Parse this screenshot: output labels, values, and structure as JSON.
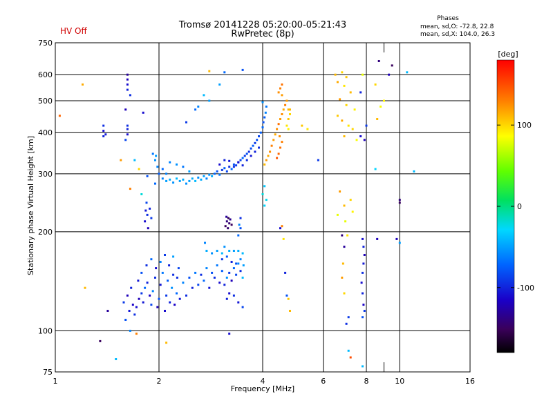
{
  "header": {
    "hv_status": "HV Off",
    "title_line1": "Tromsø 20141228 05:20:00-05:21:43",
    "title_line2": "RwPretec (8p)",
    "phases_title": "Phases",
    "phases_o": "mean, sd,O: -72.8, 22.8",
    "phases_x": "mean, sd,X: 104.0, 26.3",
    "hv_color": "#d00000"
  },
  "chart_data": {
    "type": "scatter",
    "title": "Tromsø 20141228 05:20:00-05:21:43",
    "subtitle": "RwPretec (8p)",
    "xlabel": "Frequency [MHz]",
    "ylabel": "Stationary phase Virtual Height [km]",
    "xscale": "log",
    "yscale": "log",
    "xlim": [
      1,
      16
    ],
    "ylim": [
      75,
      750
    ],
    "x_ticks": [
      1,
      2,
      4,
      6,
      8,
      10,
      16
    ],
    "x_minor_ticks": [
      9
    ],
    "y_ticks": [
      75,
      100,
      200,
      300,
      400,
      500,
      600,
      750
    ],
    "grid": true,
    "colorbar": {
      "label": "[deg]",
      "range": [
        -180,
        180
      ],
      "ticks": [
        100,
        0,
        -100
      ]
    },
    "points": [
      [
        1.7,
        112,
        -95
      ],
      [
        1.72,
        118,
        -110
      ],
      [
        1.75,
        125,
        -120
      ],
      [
        1.78,
        130,
        -90
      ],
      [
        1.8,
        122,
        -105
      ],
      [
        1.82,
        135,
        -70
      ],
      [
        1.85,
        140,
        -100
      ],
      [
        1.88,
        128,
        -115
      ],
      [
        1.9,
        120,
        -85
      ],
      [
        1.92,
        132,
        -60
      ],
      [
        1.95,
        145,
        -95
      ],
      [
        1.98,
        118,
        -120
      ],
      [
        2.0,
        125,
        -80
      ],
      [
        2.02,
        138,
        -105
      ],
      [
        2.05,
        150,
        -65
      ],
      [
        2.08,
        115,
        -110
      ],
      [
        2.1,
        128,
        -90
      ],
      [
        2.12,
        142,
        -75
      ],
      [
        2.15,
        122,
        -100
      ],
      [
        2.18,
        135,
        -55
      ],
      [
        2.2,
        148,
        -95
      ],
      [
        2.22,
        120,
        -115
      ],
      [
        2.25,
        130,
        -70
      ],
      [
        2.28,
        155,
        -85
      ],
      [
        2.3,
        125,
        -105
      ],
      [
        2.35,
        140,
        -60
      ],
      [
        2.4,
        128,
        -95
      ],
      [
        2.45,
        145,
        -80
      ],
      [
        2.5,
        135,
        -100
      ],
      [
        2.55,
        150,
        -65
      ],
      [
        1.74,
        142,
        -105
      ],
      [
        1.78,
        150,
        -80
      ],
      [
        1.84,
        158,
        -95
      ],
      [
        1.9,
        165,
        -70
      ],
      [
        1.96,
        155,
        -110
      ],
      [
        2.02,
        162,
        -60
      ],
      [
        2.08,
        170,
        -90
      ],
      [
        2.14,
        158,
        -100
      ],
      [
        2.2,
        168,
        -50
      ],
      [
        2.26,
        145,
        -95
      ],
      [
        1.62,
        128,
        -120
      ],
      [
        1.66,
        135,
        -100
      ],
      [
        1.68,
        120,
        -115
      ],
      [
        1.58,
        122,
        -90
      ],
      [
        1.64,
        115,
        -105
      ],
      [
        2.6,
        138,
        -85
      ],
      [
        2.65,
        148,
        -95
      ],
      [
        2.7,
        142,
        -70
      ],
      [
        2.75,
        155,
        -60
      ],
      [
        2.8,
        135,
        -105
      ],
      [
        2.85,
        150,
        -80
      ],
      [
        2.9,
        145,
        -95
      ],
      [
        2.95,
        158,
        -65
      ],
      [
        3.0,
        140,
        -110
      ],
      [
        3.05,
        152,
        -75
      ],
      [
        3.1,
        138,
        -100
      ],
      [
        3.15,
        145,
        -55
      ],
      [
        3.2,
        150,
        -90
      ],
      [
        3.25,
        142,
        -120
      ],
      [
        3.3,
        155,
        -70
      ],
      [
        3.35,
        148,
        -85
      ],
      [
        3.4,
        160,
        -60
      ],
      [
        3.45,
        152,
        -95
      ],
      [
        3.5,
        145,
        -40
      ],
      [
        3.52,
        158,
        -50
      ],
      [
        2.75,
        175,
        -45
      ],
      [
        2.85,
        172,
        -55
      ],
      [
        2.95,
        175,
        -50
      ],
      [
        3.05,
        172,
        -40
      ],
      [
        3.2,
        175,
        -45
      ],
      [
        3.3,
        175,
        -50
      ],
      [
        3.4,
        175,
        -45
      ],
      [
        3.5,
        172,
        -40
      ],
      [
        2.72,
        185,
        -60
      ],
      [
        3.1,
        180,
        -55
      ],
      [
        3.15,
        125,
        -100
      ],
      [
        3.2,
        130,
        -110
      ],
      [
        3.3,
        128,
        -95
      ],
      [
        3.4,
        122,
        -105
      ],
      [
        3.5,
        118,
        -85
      ],
      [
        3.05,
        165,
        -90
      ],
      [
        3.15,
        168,
        -75
      ],
      [
        3.25,
        162,
        -100
      ],
      [
        3.35,
        160,
        -80
      ],
      [
        3.45,
        165,
        -60
      ],
      [
        3.4,
        195,
        -70
      ],
      [
        3.45,
        205,
        -80
      ],
      [
        3.45,
        220,
        -95
      ],
      [
        3.42,
        210,
        -60
      ],
      [
        3.12,
        208,
        -150
      ],
      [
        3.15,
        215,
        -140
      ],
      [
        3.18,
        220,
        -155
      ],
      [
        3.2,
        212,
        -145
      ],
      [
        3.22,
        218,
        -135
      ],
      [
        3.25,
        210,
        -150
      ],
      [
        3.14,
        222,
        -130
      ],
      [
        3.17,
        205,
        -145
      ],
      [
        1.82,
        215,
        -110
      ],
      [
        1.85,
        225,
        -95
      ],
      [
        1.88,
        235,
        -100
      ],
      [
        1.84,
        245,
        -85
      ],
      [
        1.86,
        205,
        -120
      ],
      [
        1.9,
        220,
        -90
      ],
      [
        1.83,
        232,
        -105
      ],
      [
        1.62,
        395,
        -110
      ],
      [
        1.62,
        410,
        -100
      ],
      [
        1.62,
        420,
        -95
      ],
      [
        1.6,
        380,
        -85
      ],
      [
        1.38,
        390,
        -100
      ],
      [
        1.38,
        405,
        -110
      ],
      [
        1.38,
        420,
        -95
      ],
      [
        1.4,
        395,
        -105
      ],
      [
        1.62,
        580,
        -120
      ],
      [
        1.62,
        560,
        -110
      ],
      [
        1.62,
        540,
        -100
      ],
      [
        1.65,
        520,
        -95
      ],
      [
        1.62,
        600,
        -130
      ],
      [
        2.05,
        290,
        -60
      ],
      [
        2.1,
        285,
        -50
      ],
      [
        2.15,
        288,
        -45
      ],
      [
        2.2,
        282,
        -55
      ],
      [
        2.25,
        290,
        -40
      ],
      [
        2.3,
        285,
        -50
      ],
      [
        2.35,
        288,
        -45
      ],
      [
        2.4,
        280,
        -55
      ],
      [
        2.45,
        285,
        -50
      ],
      [
        2.5,
        290,
        -45
      ],
      [
        2.55,
        285,
        -40
      ],
      [
        2.6,
        292,
        -55
      ],
      [
        2.65,
        288,
        -45
      ],
      [
        2.7,
        295,
        -50
      ],
      [
        2.75,
        290,
        -60
      ],
      [
        2.8,
        298,
        -55
      ],
      [
        2.85,
        295,
        -45
      ],
      [
        2.9,
        300,
        -70
      ],
      [
        2.95,
        305,
        -80
      ],
      [
        3.0,
        298,
        -65
      ],
      [
        3.05,
        308,
        -90
      ],
      [
        3.1,
        312,
        -75
      ],
      [
        3.15,
        305,
        -85
      ],
      [
        3.2,
        315,
        -95
      ],
      [
        3.25,
        310,
        -70
      ],
      [
        3.3,
        320,
        -80
      ],
      [
        3.35,
        318,
        -90
      ],
      [
        3.4,
        325,
        -75
      ],
      [
        3.45,
        330,
        -85
      ],
      [
        3.5,
        335,
        -70
      ],
      [
        3.55,
        340,
        -90
      ],
      [
        3.6,
        345,
        -80
      ],
      [
        3.65,
        350,
        -95
      ],
      [
        3.7,
        358,
        -85
      ],
      [
        3.75,
        365,
        -75
      ],
      [
        3.8,
        372,
        -90
      ],
      [
        3.85,
        380,
        -80
      ],
      [
        3.9,
        390,
        -85
      ],
      [
        3.95,
        400,
        -75
      ],
      [
        4.0,
        415,
        -70
      ],
      [
        4.02,
        430,
        -80
      ],
      [
        4.05,
        445,
        -75
      ],
      [
        4.08,
        460,
        -60
      ],
      [
        4.1,
        480,
        -65
      ],
      [
        4.0,
        495,
        -55
      ],
      [
        2.05,
        310,
        -70
      ],
      [
        2.15,
        325,
        -60
      ],
      [
        2.25,
        320,
        -55
      ],
      [
        2.35,
        315,
        -65
      ],
      [
        2.45,
        305,
        -50
      ],
      [
        2.0,
        300,
        -75
      ],
      [
        1.98,
        315,
        -60
      ],
      [
        1.95,
        330,
        -55
      ],
      [
        1.92,
        345,
        -65
      ],
      [
        1.96,
        340,
        -50
      ],
      [
        3.0,
        320,
        -110
      ],
      [
        3.1,
        330,
        -100
      ],
      [
        3.2,
        328,
        -105
      ],
      [
        3.3,
        315,
        -95
      ],
      [
        3.4,
        325,
        -110
      ],
      [
        3.5,
        318,
        -100
      ],
      [
        3.6,
        330,
        -95
      ],
      [
        3.7,
        340,
        -105
      ],
      [
        3.8,
        350,
        -100
      ],
      [
        3.9,
        360,
        -95
      ],
      [
        4.05,
        320,
        110
      ],
      [
        4.1,
        330,
        120
      ],
      [
        4.15,
        340,
        115
      ],
      [
        4.2,
        350,
        125
      ],
      [
        4.25,
        365,
        130
      ],
      [
        4.3,
        380,
        120
      ],
      [
        4.35,
        395,
        115
      ],
      [
        4.4,
        410,
        125
      ],
      [
        4.45,
        425,
        135
      ],
      [
        4.5,
        440,
        120
      ],
      [
        4.55,
        455,
        125
      ],
      [
        4.6,
        470,
        115
      ],
      [
        4.65,
        485,
        130
      ],
      [
        4.7,
        500,
        120
      ],
      [
        4.75,
        470,
        110
      ],
      [
        4.45,
        345,
        140
      ],
      [
        4.5,
        360,
        135
      ],
      [
        4.4,
        335,
        145
      ],
      [
        4.55,
        375,
        130
      ],
      [
        4.48,
        390,
        125
      ],
      [
        4.7,
        420,
        95
      ],
      [
        4.75,
        440,
        105
      ],
      [
        4.8,
        455,
        100
      ],
      [
        4.75,
        410,
        90
      ],
      [
        4.8,
        470,
        110
      ],
      [
        4.45,
        530,
        125
      ],
      [
        4.5,
        545,
        130
      ],
      [
        4.55,
        520,
        120
      ],
      [
        4.55,
        560,
        135
      ],
      [
        4.05,
        240,
        -30
      ],
      [
        4.1,
        250,
        -25
      ],
      [
        4.0,
        260,
        -20
      ],
      [
        4.05,
        275,
        -35
      ],
      [
        6.5,
        600,
        110
      ],
      [
        6.8,
        610,
        100
      ],
      [
        7.0,
        590,
        105
      ],
      [
        6.6,
        570,
        115
      ],
      [
        6.9,
        555,
        95
      ],
      [
        7.2,
        530,
        110
      ],
      [
        6.7,
        505,
        120
      ],
      [
        7.0,
        485,
        100
      ],
      [
        7.4,
        470,
        90
      ],
      [
        6.6,
        450,
        105
      ],
      [
        6.8,
        435,
        115
      ],
      [
        7.1,
        420,
        95
      ],
      [
        7.3,
        410,
        100
      ],
      [
        6.9,
        390,
        110
      ],
      [
        7.5,
        380,
        85
      ],
      [
        7.7,
        390,
        -110
      ],
      [
        7.9,
        380,
        -120
      ],
      [
        7.7,
        530,
        -100
      ],
      [
        8.0,
        420,
        -90
      ],
      [
        7.8,
        600,
        80
      ],
      [
        8.5,
        560,
        100
      ],
      [
        9.0,
        500,
        90
      ],
      [
        8.6,
        440,
        110
      ],
      [
        8.8,
        480,
        85
      ],
      [
        8.7,
        660,
        -140
      ],
      [
        9.5,
        640,
        -150
      ],
      [
        9.3,
        600,
        -120
      ],
      [
        10.0,
        250,
        -140
      ],
      [
        10.0,
        245,
        -150
      ],
      [
        9.8,
        190,
        -120
      ],
      [
        8.5,
        310,
        -30
      ],
      [
        11.0,
        305,
        -40
      ],
      [
        10.5,
        610,
        -40
      ],
      [
        7.8,
        190,
        -110
      ],
      [
        7.85,
        180,
        -100
      ],
      [
        7.9,
        170,
        -120
      ],
      [
        7.85,
        160,
        -105
      ],
      [
        7.8,
        150,
        -95
      ],
      [
        7.75,
        140,
        -110
      ],
      [
        7.8,
        130,
        -100
      ],
      [
        7.85,
        120,
        -115
      ],
      [
        7.9,
        115,
        -90
      ],
      [
        7.8,
        110,
        -80
      ],
      [
        6.8,
        195,
        -140
      ],
      [
        6.9,
        180,
        -130
      ],
      [
        6.85,
        160,
        110
      ],
      [
        6.8,
        145,
        120
      ],
      [
        6.9,
        130,
        100
      ],
      [
        7.1,
        110,
        -90
      ],
      [
        7.0,
        105,
        -95
      ],
      [
        7.1,
        87,
        -40
      ],
      [
        7.2,
        83,
        150
      ],
      [
        7.8,
        78,
        -40
      ],
      [
        6.6,
        225,
        80
      ],
      [
        6.9,
        240,
        110
      ],
      [
        6.7,
        265,
        120
      ],
      [
        7.2,
        250,
        100
      ],
      [
        7.3,
        230,
        90
      ],
      [
        6.95,
        215,
        80
      ],
      [
        7.05,
        195,
        95
      ],
      [
        8.6,
        190,
        -120
      ],
      [
        10.0,
        185,
        -50
      ],
      [
        5.4,
        410,
        95
      ],
      [
        5.2,
        420,
        105
      ],
      [
        5.8,
        330,
        -90
      ],
      [
        4.55,
        208,
        130
      ],
      [
        4.5,
        205,
        -110
      ],
      [
        4.6,
        190,
        95
      ],
      [
        4.65,
        150,
        -100
      ],
      [
        4.7,
        128,
        -80
      ],
      [
        4.75,
        125,
        105
      ],
      [
        4.8,
        115,
        110
      ],
      [
        1.2,
        560,
        115
      ],
      [
        1.03,
        450,
        140
      ],
      [
        1.22,
        135,
        110
      ],
      [
        1.35,
        93,
        -150
      ],
      [
        1.42,
        115,
        -130
      ],
      [
        1.6,
        108,
        -80
      ],
      [
        1.65,
        100,
        -60
      ],
      [
        1.72,
        98,
        130
      ],
      [
        2.1,
        92,
        110
      ],
      [
        3.2,
        98,
        -110
      ],
      [
        1.5,
        82,
        -40
      ],
      [
        2.8,
        615,
        110
      ],
      [
        3.0,
        560,
        -50
      ],
      [
        3.5,
        620,
        -80
      ],
      [
        3.1,
        610,
        -70
      ],
      [
        2.7,
        520,
        -40
      ],
      [
        2.8,
        500,
        -50
      ],
      [
        2.6,
        480,
        -60
      ],
      [
        2.55,
        470,
        -70
      ],
      [
        2.4,
        430,
        -90
      ],
      [
        1.8,
        460,
        -110
      ],
      [
        1.6,
        470,
        -120
      ],
      [
        1.55,
        330,
        120
      ],
      [
        1.7,
        330,
        -40
      ],
      [
        1.75,
        310,
        100
      ],
      [
        1.78,
        260,
        -20
      ],
      [
        1.65,
        270,
        130
      ],
      [
        1.85,
        295,
        -80
      ],
      [
        1.95,
        280,
        -70
      ],
      [
        2.1,
        300,
        -60
      ]
    ]
  }
}
